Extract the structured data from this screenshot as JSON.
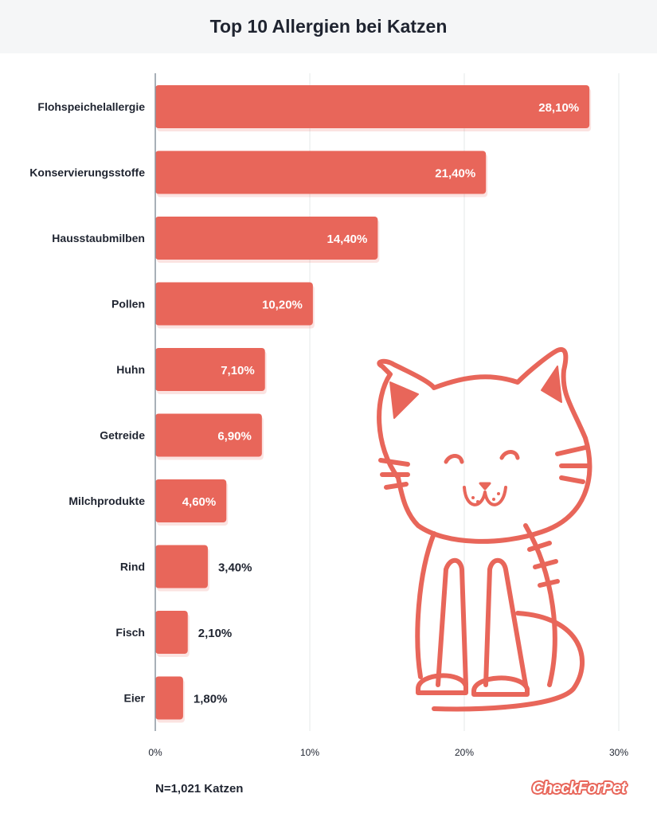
{
  "chart_data": {
    "type": "bar",
    "orientation": "horizontal",
    "title": "Top 10 Allergien bei Katzen",
    "categories": [
      "Flohspeichelallergie",
      "Konservierungsstoffe",
      "Hausstaubmilben",
      "Pollen",
      "Huhn",
      "Getreide",
      "Milchprodukte",
      "Rind",
      "Fisch",
      "Eier"
    ],
    "values": [
      28.1,
      21.4,
      14.4,
      10.2,
      7.1,
      6.9,
      4.6,
      3.4,
      2.1,
      1.8
    ],
    "value_labels": [
      "28,10%",
      "21,40%",
      "14,40%",
      "10,20%",
      "7,10%",
      "6,90%",
      "4,60%",
      "3,40%",
      "2,10%",
      "1,80%"
    ],
    "xlim": [
      0,
      30
    ],
    "xticks": [
      0,
      10,
      20,
      30
    ],
    "xtick_labels": [
      "0%",
      "10%",
      "20%",
      "30%"
    ],
    "grid": true,
    "bar_color": "#e8665a"
  },
  "footnote": "N=1,021 Katzen",
  "brand": "CheckForPet",
  "illustration": "cat-illustration"
}
